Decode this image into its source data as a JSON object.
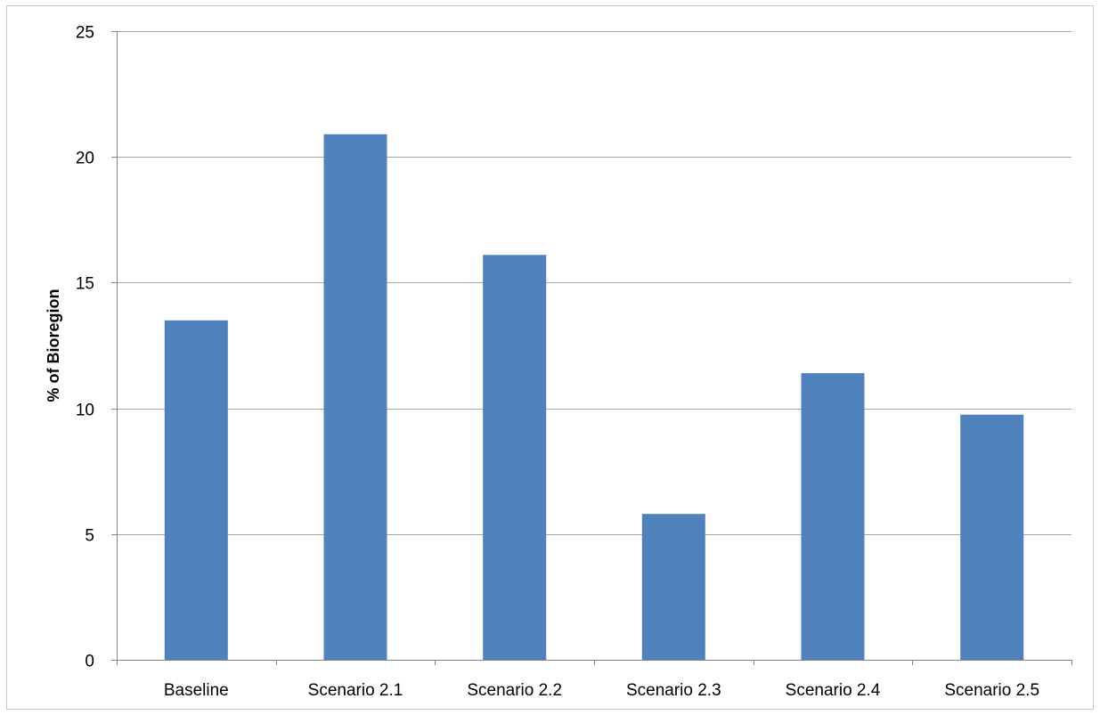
{
  "chart_data": {
    "type": "bar",
    "title": "",
    "xlabel": "",
    "ylabel": "% of Bioregion",
    "categories": [
      "Baseline",
      "Scenario 2.1",
      "Scenario 2.2",
      "Scenario 2.3",
      "Scenario 2.4",
      "Scenario 2.5"
    ],
    "values": [
      13.5,
      20.9,
      16.1,
      5.8,
      11.4,
      9.75
    ],
    "ylim": [
      0,
      25
    ],
    "yticks": [
      0,
      5,
      10,
      15,
      20,
      25
    ],
    "grid": true,
    "legend": "none",
    "bar_color": "#4f81bd"
  }
}
